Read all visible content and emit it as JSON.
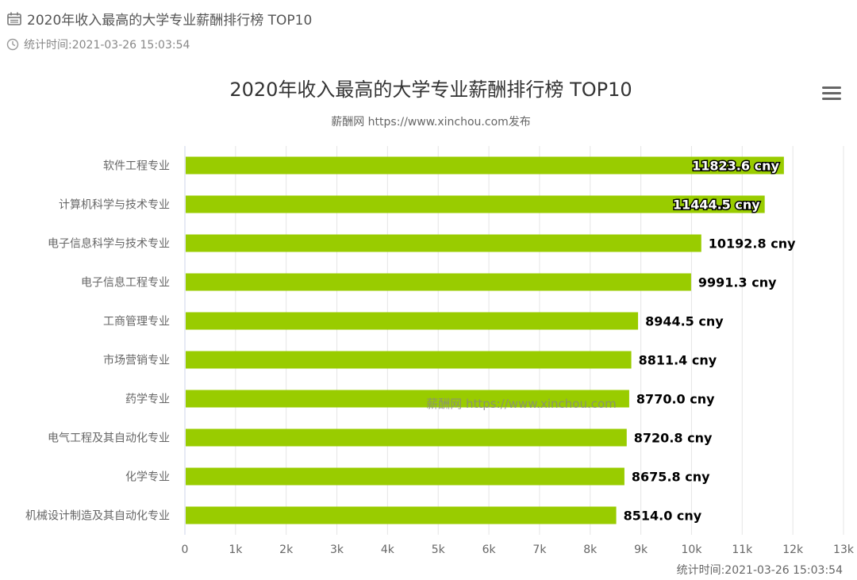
{
  "header": {
    "title": "2020年收入最高的大学专业薪酬排行榜 TOP10",
    "timestamp": "统计时间:2021-03-26 15:03:54",
    "title_icon": "calendar-icon",
    "timestamp_icon": "clock-icon"
  },
  "menu": {
    "icon": "hamburger-menu-icon"
  },
  "chart_data": {
    "type": "bar",
    "orientation": "horizontal",
    "title": "2020年收入最高的大学专业薪酬排行榜 TOP10",
    "subtitle": "薪酬网 https://www.xinchou.com发布",
    "categories": [
      "软件工程专业",
      "计算机科学与技术专业",
      "电子信息科学与技术专业",
      "电子信息工程专业",
      "工商管理专业",
      "市场营销专业",
      "药学专业",
      "电气工程及其自动化专业",
      "化学专业",
      "机械设计制造及其自动化专业"
    ],
    "values": [
      11823.6,
      11444.5,
      10192.8,
      9991.3,
      8944.5,
      8811.4,
      8770.0,
      8720.8,
      8675.8,
      8514.0
    ],
    "data_labels": [
      "11823.6 cny",
      "11444.5 cny",
      "10192.8 cny",
      "9991.3 cny",
      "8944.5 cny",
      "8811.4 cny",
      "8770.0 cny",
      "8720.8 cny",
      "8675.8 cny",
      "8514.0 cny"
    ],
    "xlim": [
      0,
      13000
    ],
    "x_ticks": [
      0,
      1000,
      2000,
      3000,
      4000,
      5000,
      6000,
      7000,
      8000,
      9000,
      10000,
      11000,
      12000,
      13000
    ],
    "x_tick_labels": [
      "0",
      "1k",
      "2k",
      "3k",
      "4k",
      "5k",
      "6k",
      "7k",
      "8k",
      "9k",
      "10k",
      "11k",
      "12k",
      "13k"
    ],
    "bar_color": "#99cc00",
    "grid": true,
    "watermark": "薪酬网 https://www.xinchou.com",
    "credit": "统计时间:2021-03-26 15:03:54"
  }
}
